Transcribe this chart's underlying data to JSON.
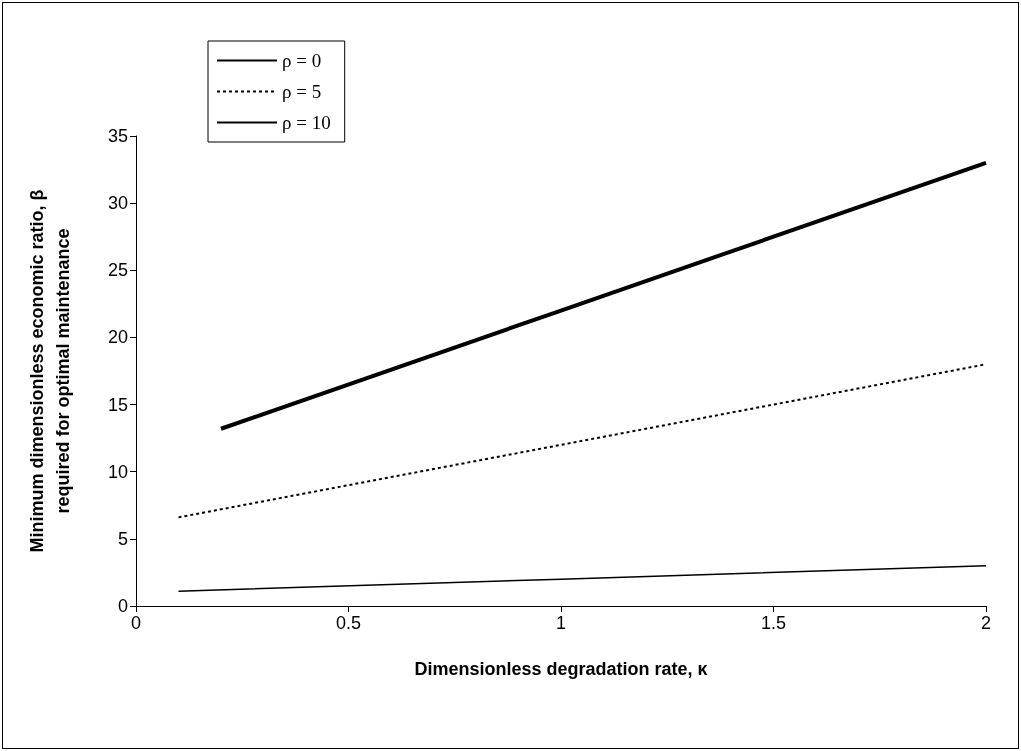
{
  "chart_data": {
    "type": "line",
    "xlabel": "Dimensionless degradation rate, κ",
    "ylabel": "Minimum dimensionless economic ratio, β\nrequired for optimal maintenance",
    "xlim": [
      0,
      2
    ],
    "xticks": [
      0,
      0.5,
      1,
      1.5,
      2
    ],
    "ylim": [
      0,
      35
    ],
    "yticks": [
      0,
      5,
      10,
      15,
      20,
      25,
      30,
      35
    ],
    "grid": false,
    "legend": "top left",
    "marker": "none",
    "series": [
      {
        "name": "ρ = 0",
        "color": "#000000",
        "line_style": "solid",
        "x": [
          0.1,
          1,
          2
        ],
        "values": [
          1.1,
          2,
          3
        ]
      },
      {
        "name": "ρ = 5",
        "color": "#000000",
        "line_style": "dotted",
        "x": [
          0.1,
          1,
          2
        ],
        "values": [
          6.6,
          12,
          18
        ]
      },
      {
        "name": "ρ = 10",
        "color": "#000000",
        "line_style": "solid",
        "x": [
          0.2,
          1,
          2
        ],
        "values": [
          13.2,
          22,
          33
        ]
      }
    ]
  }
}
